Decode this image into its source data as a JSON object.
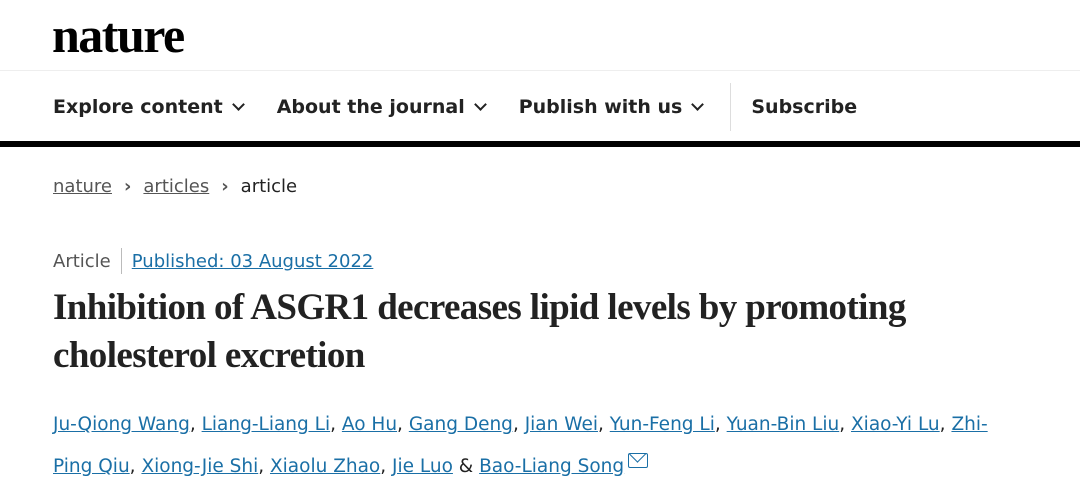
{
  "header": {
    "logo": "nature"
  },
  "nav": {
    "items": [
      {
        "label": "Explore content",
        "dropdown": true
      },
      {
        "label": "About the journal",
        "dropdown": true
      },
      {
        "label": "Publish with us",
        "dropdown": true
      }
    ],
    "subscribe": "Subscribe"
  },
  "breadcrumb": [
    "nature",
    "articles",
    "article"
  ],
  "article": {
    "type": "Article",
    "published": "Published: 03 August 2022",
    "title": "Inhibition of ASGR1 decreases lipid levels by promoting cholesterol excretion",
    "authors": [
      "Ju-Qiong Wang",
      "Liang-Liang Li",
      "Ao Hu",
      "Gang Deng",
      "Jian Wei",
      "Yun-Feng Li",
      "Yuan-Bin Liu",
      "Xiao-Yi Lu",
      "Zhi-Ping Qiu",
      "Xiong-Jie Shi",
      "Xiaolu Zhao",
      "Jie Luo",
      "Bao-Liang Song"
    ],
    "last_join": "&"
  },
  "colors": {
    "link": "#1a6fa6",
    "text": "#222222"
  }
}
